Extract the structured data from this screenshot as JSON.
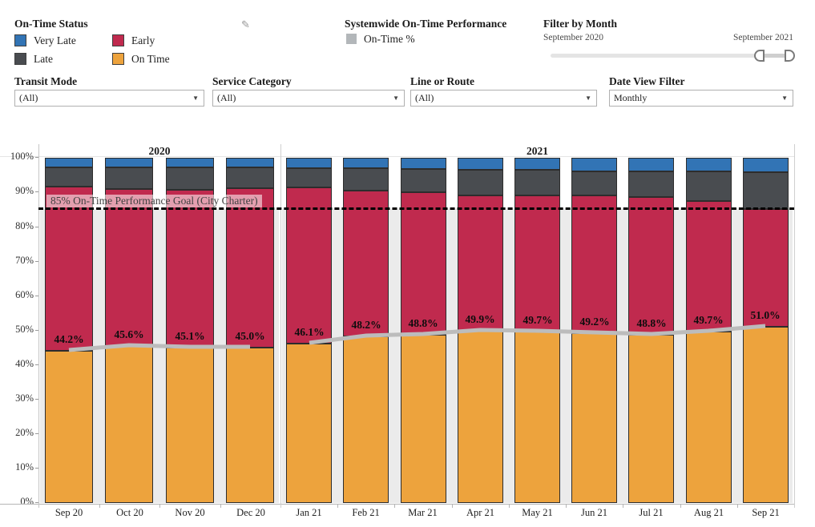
{
  "legends": {
    "status": {
      "title": "On-Time Status",
      "items": [
        {
          "label": "Very Late",
          "color": "#3274b5"
        },
        {
          "label": "Early",
          "color": "#c02a4e"
        },
        {
          "label": "Late",
          "color": "#494c50"
        },
        {
          "label": "On Time",
          "color": "#eda33d"
        }
      ]
    },
    "systemwide": {
      "title": "Systemwide On-Time Performance",
      "item_label": "On-Time %",
      "item_color": "#b3b7ba"
    }
  },
  "month_filter": {
    "title": "Filter by Month",
    "start_label": "September 2020",
    "end_label": "September 2021"
  },
  "filters": [
    {
      "label": "Transit Mode",
      "value": "(All)"
    },
    {
      "label": "Service Category",
      "value": "(All)"
    },
    {
      "label": "Line or Route",
      "value": "(All)"
    },
    {
      "label": "Date View Filter",
      "value": "Monthly"
    }
  ],
  "icons": {
    "edit": "✎",
    "caret": "▼"
  },
  "chart_data": {
    "type": "bar",
    "stacked": true,
    "line_overlay": true,
    "panes": [
      {
        "label": "2020",
        "categories_count": 4
      },
      {
        "label": "2021",
        "categories_count": 9
      }
    ],
    "categories": [
      "Sep 20",
      "Oct 20",
      "Nov 20",
      "Dec 20",
      "Jan 21",
      "Feb 21",
      "Mar 21",
      "Apr 21",
      "May 21",
      "Jun 21",
      "Jul 21",
      "Aug 21",
      "Sep 21"
    ],
    "series": [
      {
        "name": "On Time",
        "color": "#eda33d",
        "values": [
          44.2,
          45.6,
          45.1,
          45.0,
          46.1,
          48.2,
          48.8,
          49.9,
          49.7,
          49.2,
          48.8,
          49.7,
          51.0
        ]
      },
      {
        "name": "Early",
        "color": "#c02a4e",
        "values": [
          47.6,
          45.4,
          45.8,
          46.3,
          45.5,
          42.4,
          41.2,
          39.2,
          39.5,
          40.0,
          39.9,
          37.8,
          34.2
        ]
      },
      {
        "name": "Late",
        "color": "#494c50",
        "values": [
          5.5,
          6.3,
          6.4,
          6.0,
          5.5,
          6.5,
          6.8,
          7.4,
          7.3,
          7.0,
          7.4,
          8.6,
          10.7
        ]
      },
      {
        "name": "Very Late",
        "color": "#3274b5",
        "values": [
          2.7,
          2.7,
          2.7,
          2.7,
          2.9,
          2.9,
          3.2,
          3.5,
          3.5,
          3.8,
          3.9,
          3.9,
          4.1
        ]
      }
    ],
    "line": {
      "name": "On-Time %",
      "color": "#bcbcbc",
      "values": [
        44.2,
        45.6,
        45.1,
        45.0,
        46.1,
        48.2,
        48.8,
        49.9,
        49.7,
        49.2,
        48.8,
        49.7,
        51.0
      ],
      "labels": [
        "44.2%",
        "45.6%",
        "45.1%",
        "45.0%",
        "46.1%",
        "48.2%",
        "48.8%",
        "49.9%",
        "49.7%",
        "49.2%",
        "48.8%",
        "49.7%",
        "51.0%"
      ]
    },
    "goal_line": {
      "value": 85,
      "label": "85% On-Time Performance Goal (City Charter)",
      "style": "dashed",
      "color": "#000000"
    },
    "y_axis": {
      "min": 0,
      "max": 100,
      "step": 10,
      "suffix": "%"
    },
    "colors": {
      "band_below_goal": "#ebebeb",
      "bar_border": "#2d2d2d",
      "axis_line": "#b5b5b5",
      "pane_line": "#cfcfcf"
    }
  }
}
